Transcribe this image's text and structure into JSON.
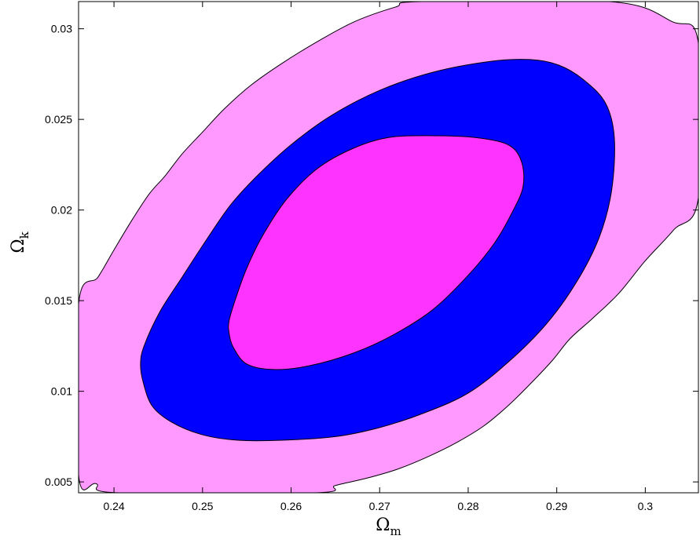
{
  "chart_data": {
    "type": "contour",
    "xlabel": "Ω",
    "xlabel_sub": "m",
    "ylabel": "Ω",
    "ylabel_sub": "k",
    "xlim": [
      0.236,
      0.306
    ],
    "ylim": [
      0.0044,
      0.0315
    ],
    "xticks": [
      0.24,
      0.25,
      0.26,
      0.27,
      0.28,
      0.29,
      0.3
    ],
    "xtick_labels": [
      "0.24",
      "0.25",
      "0.26",
      "0.27",
      "0.28",
      "0.29",
      "0.3"
    ],
    "yticks": [
      0.005,
      0.01,
      0.015,
      0.02,
      0.025,
      0.03
    ],
    "ytick_labels": [
      "0.005",
      "0.01",
      "0.015",
      "0.02",
      "0.025",
      "0.03"
    ],
    "grid": false,
    "regions": [
      {
        "level": "outer",
        "color": "#ff99ff",
        "points": [
          [
            0.236,
            0.0148
          ],
          [
            0.2382,
            0.0163
          ],
          [
            0.24,
            0.0178
          ],
          [
            0.2421,
            0.0195
          ],
          [
            0.244,
            0.0209
          ],
          [
            0.2458,
            0.0219
          ],
          [
            0.2477,
            0.0231
          ],
          [
            0.25,
            0.0243
          ],
          [
            0.2525,
            0.0256
          ],
          [
            0.2555,
            0.0269
          ],
          [
            0.259,
            0.0281
          ],
          [
            0.263,
            0.0293
          ],
          [
            0.2672,
            0.0304
          ],
          [
            0.2718,
            0.0312
          ],
          [
            0.2748,
            0.0315
          ],
          [
            0.296,
            0.0315
          ],
          [
            0.303,
            0.0304
          ],
          [
            0.306,
            0.0292
          ],
          [
            0.306,
            0.0207
          ],
          [
            0.3032,
            0.0189
          ],
          [
            0.3,
            0.0172
          ],
          [
            0.297,
            0.0154
          ],
          [
            0.294,
            0.014
          ],
          [
            0.2915,
            0.0129
          ],
          [
            0.2895,
            0.0117
          ],
          [
            0.287,
            0.0104
          ],
          [
            0.2845,
            0.0092
          ],
          [
            0.2818,
            0.0081
          ],
          [
            0.2788,
            0.0072
          ],
          [
            0.2755,
            0.0064
          ],
          [
            0.272,
            0.0057
          ],
          [
            0.2685,
            0.0052
          ],
          [
            0.265,
            0.0048
          ],
          [
            0.2627,
            0.0044
          ],
          [
            0.2405,
            0.0044
          ],
          [
            0.238,
            0.0049
          ],
          [
            0.236,
            0.0054
          ]
        ]
      },
      {
        "level": "middle",
        "color": "#0000ff",
        "points": [
          [
            0.2434,
            0.0125
          ],
          [
            0.2452,
            0.0144
          ],
          [
            0.2477,
            0.0163
          ],
          [
            0.2505,
            0.0184
          ],
          [
            0.2532,
            0.0203
          ],
          [
            0.2562,
            0.0219
          ],
          [
            0.26,
            0.0236
          ],
          [
            0.2645,
            0.0252
          ],
          [
            0.27,
            0.0266
          ],
          [
            0.276,
            0.0276
          ],
          [
            0.2825,
            0.0282
          ],
          [
            0.287,
            0.0283
          ],
          [
            0.2902,
            0.028
          ],
          [
            0.293,
            0.0272
          ],
          [
            0.2955,
            0.0259
          ],
          [
            0.2965,
            0.024
          ],
          [
            0.2962,
            0.0211
          ],
          [
            0.2948,
            0.0185
          ],
          [
            0.2922,
            0.016
          ],
          [
            0.2888,
            0.0137
          ],
          [
            0.2845,
            0.0116
          ],
          [
            0.28,
            0.0099
          ],
          [
            0.275,
            0.0088
          ],
          [
            0.27,
            0.008
          ],
          [
            0.265,
            0.0075
          ],
          [
            0.259,
            0.0073
          ],
          [
            0.254,
            0.0073
          ],
          [
            0.25,
            0.0076
          ],
          [
            0.2465,
            0.0083
          ],
          [
            0.2443,
            0.0092
          ],
          [
            0.2433,
            0.0105
          ],
          [
            0.243,
            0.0115
          ]
        ]
      },
      {
        "level": "inner",
        "color": "#ff33ff",
        "points": [
          [
            0.253,
            0.0139
          ],
          [
            0.2538,
            0.0152
          ],
          [
            0.255,
            0.0168
          ],
          [
            0.2568,
            0.0186
          ],
          [
            0.2595,
            0.0206
          ],
          [
            0.263,
            0.0223
          ],
          [
            0.267,
            0.0234
          ],
          [
            0.271,
            0.024
          ],
          [
            0.276,
            0.0241
          ],
          [
            0.2808,
            0.024
          ],
          [
            0.2845,
            0.0236
          ],
          [
            0.286,
            0.0227
          ],
          [
            0.2862,
            0.0213
          ],
          [
            0.285,
            0.0199
          ],
          [
            0.283,
            0.0182
          ],
          [
            0.28,
            0.0164
          ],
          [
            0.276,
            0.0145
          ],
          [
            0.2715,
            0.0131
          ],
          [
            0.267,
            0.0121
          ],
          [
            0.262,
            0.0114
          ],
          [
            0.258,
            0.0112
          ],
          [
            0.255,
            0.0115
          ],
          [
            0.2535,
            0.0124
          ],
          [
            0.253,
            0.0132
          ]
        ]
      }
    ]
  }
}
